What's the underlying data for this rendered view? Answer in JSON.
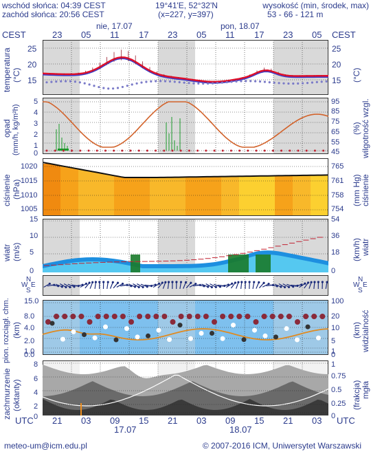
{
  "header": {
    "sunrise": "wschód słońca: 04:39 CEST",
    "sunset": "zachód słońca: 20:56 CEST",
    "coords": "19°41'E, 52°32'N",
    "grid": "(x=227,  y=397)",
    "altitude_title": "wysokość (min, środek, max)",
    "altitude_values": "53 - 66 - 121 m",
    "tz_left": "CEST",
    "tz_right": "CEST",
    "day1": "nie, 17.07",
    "day2": "pon, 18.07",
    "top_hours": [
      "23",
      "05",
      "11",
      "17",
      "23",
      "05",
      "11",
      "17",
      "23",
      "05"
    ]
  },
  "bottom": {
    "tz_left": "UTC",
    "tz_right": "UTC",
    "hours": [
      "21",
      "03",
      "09",
      "15",
      "21",
      "03",
      "09",
      "15",
      "21",
      "03"
    ],
    "date1": "17.07",
    "date2": "18.07"
  },
  "panels": {
    "temperature": {
      "left_label": "temperatura",
      "left_unit": "(°C)",
      "right_label": "(°C)",
      "ticks": [
        "25",
        "20",
        "15"
      ]
    },
    "precip": {
      "left_label": "opad",
      "left_unit": "(mm/h, kg/m²h)",
      "right_label": "wilgotność wzgl.",
      "right_unit": "(%)",
      "left_ticks": [
        "5",
        "4",
        "3",
        "2",
        "1",
        "0"
      ],
      "right_ticks": [
        "95",
        "85",
        "75",
        "65",
        "55",
        "45"
      ]
    },
    "pressure": {
      "left_label": "ciśnienie",
      "left_unit": "(hPa)",
      "right_label": "(mm Hg)",
      "left_ticks": [
        "1020",
        "1015",
        "1010",
        "1005"
      ],
      "right_ticks": [
        "765",
        "761",
        "758",
        "754"
      ]
    },
    "wind": {
      "left_label": "wiatr",
      "left_unit": "(m/s)",
      "right_label": "wiatr",
      "right_unit": "(km/h)",
      "left_ticks": [
        "15",
        "10",
        "5",
        "0"
      ],
      "right_ticks": [
        "54",
        "36",
        "18",
        "0"
      ]
    },
    "winddir": {
      "left_labels": [
        "N",
        "W",
        "E",
        "S"
      ],
      "right_labels": [
        "N",
        "W",
        "E",
        "S"
      ]
    },
    "visibility": {
      "left_label": "pion. rozciągł. chm.",
      "left_unit": "(km)",
      "right_label": "widzialność",
      "right_unit": "(km)",
      "left_ticks": [
        "15.0",
        "8.0",
        "4.0",
        "2.0",
        "1.0",
        "0.0"
      ],
      "right_ticks": [
        "100",
        "20",
        "10",
        "5",
        "1",
        "0"
      ]
    },
    "cloud": {
      "left_label": "zachmurzenie",
      "left_unit": "(oktanty)",
      "right_label": "mgła",
      "right_unit": "(frakcja)",
      "left_ticks": [
        "8",
        "6",
        "4",
        "2",
        "0"
      ],
      "right_ticks": [
        "1",
        "0.75",
        "0.5",
        "0.25",
        "0"
      ]
    }
  },
  "footer": {
    "email": "meteo-um@icm.edu.pl",
    "copyright": "© 2007-2016 ICM, Uniwersytet Warszawski"
  },
  "colors": {
    "text": "#2a3a8c",
    "night": "#d9d9d9",
    "temp_line": "#e0102a",
    "temp_line2": "#3b3bc8",
    "precip_line": "#d2622a",
    "pressure_fill": "#f6a21a",
    "wind_fill": "#1d8fe0",
    "cloud_fill": "#8a8a8a",
    "vis_bg": "#7ec0ee"
  }
}
